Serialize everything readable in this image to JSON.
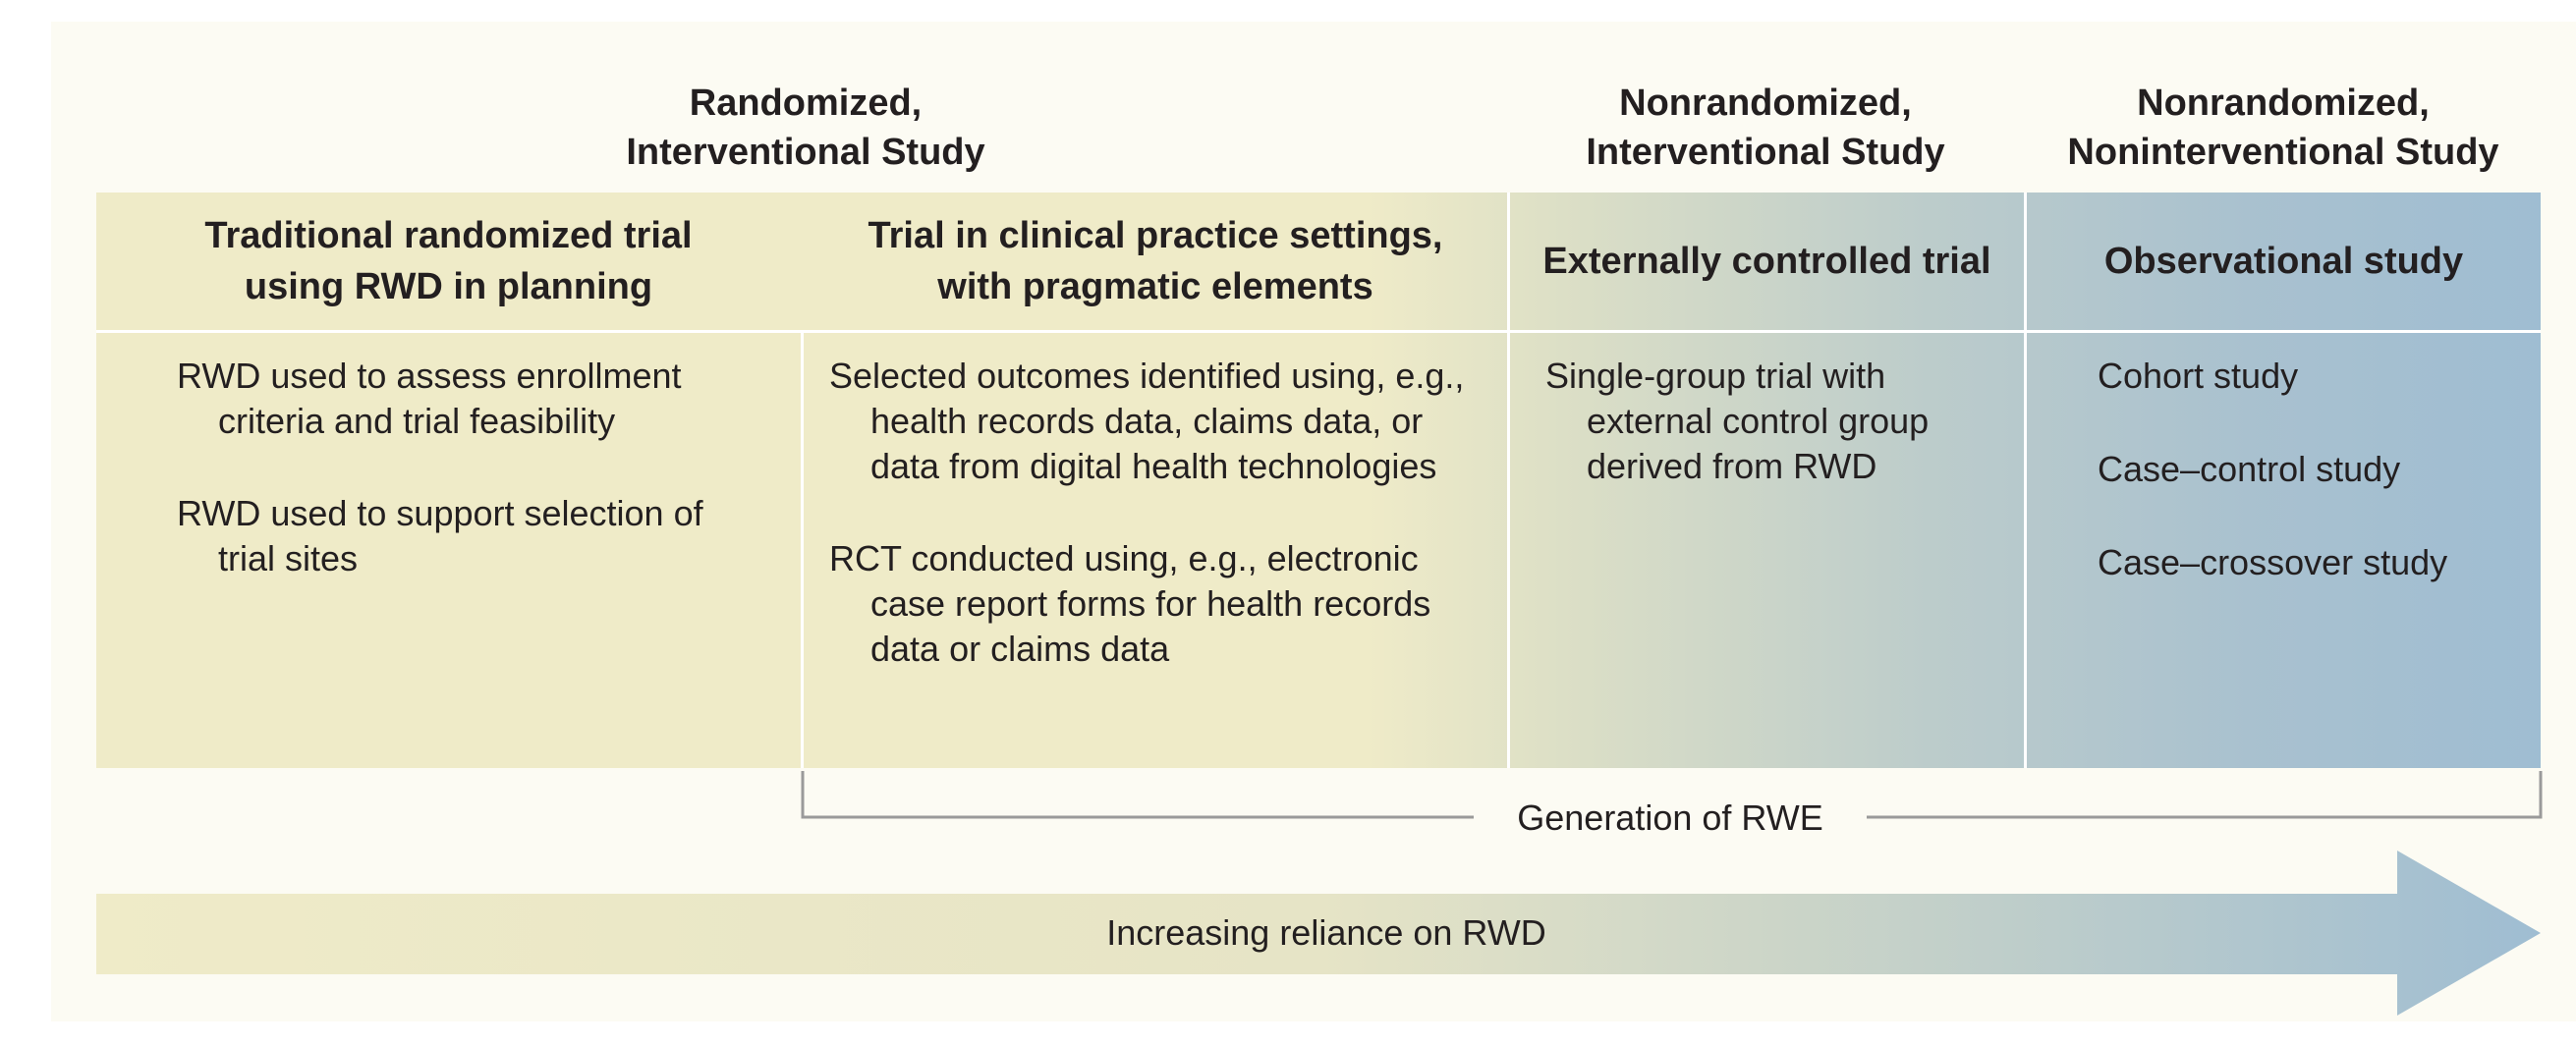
{
  "groups": [
    {
      "title": "Randomized,\nInterventional Study"
    },
    {
      "title": "Nonrandomized,\nInterventional Study"
    },
    {
      "title": "Nonrandomized,\nNoninterventional Study"
    }
  ],
  "columns": [
    {
      "header": "Traditional randomized trial\nusing RWD in planning",
      "items": [
        "RWD used to assess enrollment criteria and trial feasibility",
        "RWD used to support selection of trial sites"
      ]
    },
    {
      "header": "Trial in clinical practice settings,\nwith pragmatic elements",
      "items": [
        "Selected outcomes identified using, e.g., health records data, claims data, or data from digital health technologies",
        "RCT conducted using, e.g., electronic case report forms for health records data or claims data"
      ]
    },
    {
      "header": "Externally controlled trial",
      "items": [
        "Single-group trial with external control group derived from RWD"
      ]
    },
    {
      "header": "Observational study",
      "items": [
        "Cohort study",
        "Case–control study",
        "Case–crossover study"
      ]
    }
  ],
  "bracket_label": "Generation of RWE",
  "arrow_label": "Increasing reliance on RWD",
  "colors": {
    "panel": "#fcfbf3",
    "start": "#efebc8",
    "end": "#9fbdd2",
    "bracket": "#9a9a9a"
  }
}
